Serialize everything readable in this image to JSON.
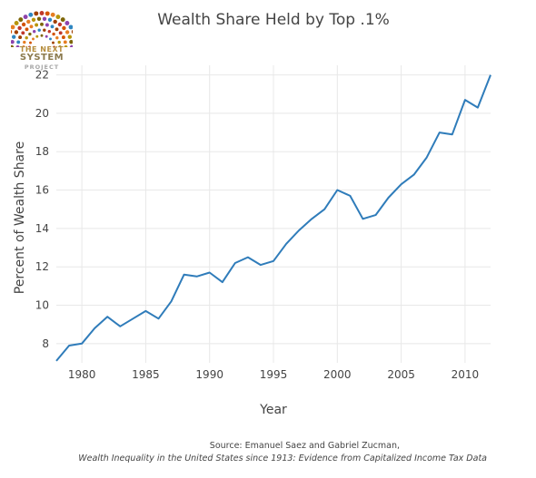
{
  "logo": {
    "line1": "THE NEXT",
    "line2": "SYSTEM",
    "line3": "PROJECT"
  },
  "source": {
    "line1": "Source:  Emanuel Saez and Gabriel Zucman,",
    "line2": "Wealth Inequality in the United States since 1913: Evidence from Capitalized Income Tax Data"
  },
  "colors": {
    "line": "#2f7cba",
    "grid": "#e8e8e8",
    "text": "#444444"
  },
  "chart_data": {
    "type": "line",
    "title": "Wealth Share Held by Top .1%",
    "xlabel": "Year",
    "ylabel": "Percent of Wealth Share",
    "xlim": [
      1978,
      2012
    ],
    "ylim": [
      7,
      22.5
    ],
    "xticks": [
      1980,
      1985,
      1990,
      1995,
      2000,
      2005,
      2010
    ],
    "yticks": [
      8,
      10,
      12,
      14,
      16,
      18,
      20,
      22
    ],
    "grid": true,
    "legend": "none",
    "series": [
      {
        "x": [
          1978,
          1979,
          1980,
          1981,
          1982,
          1983,
          1984,
          1985,
          1986,
          1987,
          1988,
          1989,
          1990,
          1991,
          1992,
          1993,
          1994,
          1995,
          1996,
          1997,
          1998,
          1999,
          2000,
          2001,
          2002,
          2003,
          2004,
          2005,
          2006,
          2007,
          2008,
          2009,
          2010,
          2011,
          2012
        ],
        "y": [
          7.1,
          7.9,
          8.0,
          8.8,
          9.4,
          8.9,
          9.3,
          9.7,
          9.3,
          10.2,
          11.6,
          11.5,
          11.7,
          11.2,
          12.2,
          12.5,
          12.1,
          12.3,
          13.2,
          13.9,
          14.5,
          15.0,
          16.0,
          15.7,
          14.5,
          14.7,
          15.6,
          16.3,
          16.8,
          17.7,
          19.0,
          18.9,
          20.7,
          20.3,
          22.0
        ]
      }
    ]
  }
}
